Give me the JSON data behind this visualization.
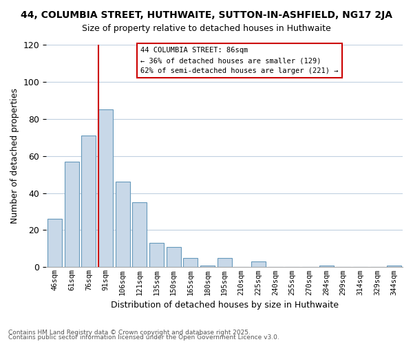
{
  "title": "44, COLUMBIA STREET, HUTHWAITE, SUTTON-IN-ASHFIELD, NG17 2JA",
  "subtitle": "Size of property relative to detached houses in Huthwaite",
  "xlabel": "Distribution of detached houses by size in Huthwaite",
  "ylabel": "Number of detached properties",
  "categories": [
    "46sqm",
    "61sqm",
    "76sqm",
    "91sqm",
    "106sqm",
    "121sqm",
    "135sqm",
    "150sqm",
    "165sqm",
    "180sqm",
    "195sqm",
    "210sqm",
    "225sqm",
    "240sqm",
    "255sqm",
    "270sqm",
    "284sqm",
    "299sqm",
    "314sqm",
    "329sqm",
    "344sqm"
  ],
  "values": [
    26,
    57,
    71,
    85,
    46,
    35,
    13,
    11,
    5,
    1,
    5,
    0,
    3,
    0,
    0,
    0,
    1,
    0,
    0,
    0,
    1
  ],
  "bar_color": "#c8d8e8",
  "bar_edge_color": "#6699bb",
  "vline_index": 3,
  "vline_color": "#cc0000",
  "ylim": [
    0,
    120
  ],
  "yticks": [
    0,
    20,
    40,
    60,
    80,
    100,
    120
  ],
  "annotation_title": "44 COLUMBIA STREET: 86sqm",
  "annotation_line1": "← 36% of detached houses are smaller (129)",
  "annotation_line2": "62% of semi-detached houses are larger (221) →",
  "footnote1": "Contains HM Land Registry data © Crown copyright and database right 2025.",
  "footnote2": "Contains public sector information licensed under the Open Government Licence v3.0.",
  "background_color": "#ffffff",
  "grid_color": "#c0d0e0"
}
